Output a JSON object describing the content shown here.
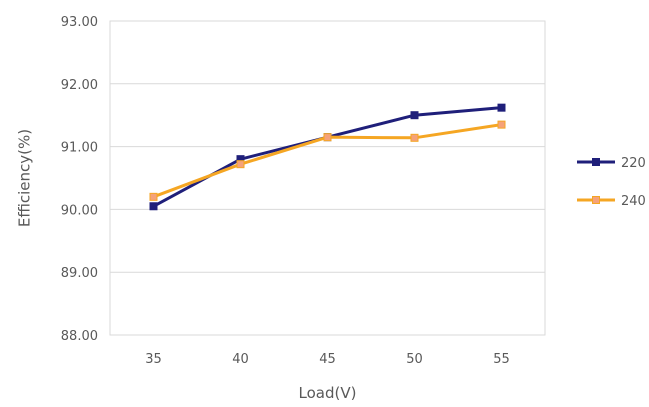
{
  "chart_data": {
    "type": "line",
    "x": [
      35,
      40,
      45,
      50,
      55
    ],
    "x_tick_labels": [
      "35",
      "40",
      "45",
      "50",
      "55"
    ],
    "xlabel": "Load(V)",
    "ylabel": "Efficiency(%)",
    "ylim": [
      88.0,
      93.0
    ],
    "y_ticks": [
      88.0,
      89.0,
      90.0,
      91.0,
      92.0,
      93.0
    ],
    "y_tick_labels": [
      "88.00",
      "89.00",
      "90.00",
      "91.00",
      "92.00",
      "93.00"
    ],
    "grid": true,
    "legend_position": "right",
    "series": [
      {
        "name": "220",
        "values": [
          90.05,
          90.8,
          91.15,
          91.5,
          91.62
        ],
        "color": "#1f1f7a",
        "marker": "square",
        "marker_fill": "#1f1f7a"
      },
      {
        "name": "240",
        "values": [
          90.2,
          90.72,
          91.15,
          91.14,
          91.35
        ],
        "color": "#f5a623",
        "marker": "square",
        "marker_fill": "#f5a27a"
      }
    ]
  }
}
